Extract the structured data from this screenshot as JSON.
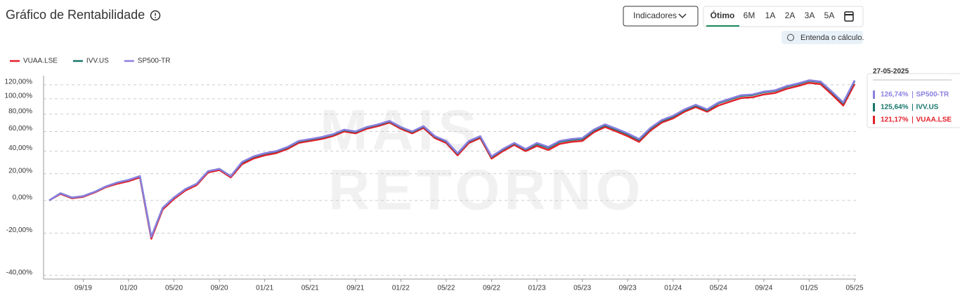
{
  "ui": {
    "title": "Gráfico de Rentabilidade",
    "indicators_button": "Indicadores",
    "period_buttons": [
      "Ótimo",
      "6M",
      "1A",
      "2A",
      "3A",
      "5A"
    ],
    "active_period": "Ótimo",
    "info_pill": "Entenda o cálculo."
  },
  "chart_data": {
    "type": "line",
    "log_scale": true,
    "grid": true,
    "legend": "top-left",
    "watermark": [
      "MAIS",
      "RETORNO"
    ],
    "x": [
      "06/19",
      "07/19",
      "08/19",
      "09/19",
      "10/19",
      "11/19",
      "12/19",
      "01/20",
      "02/20",
      "03/20",
      "04/20",
      "05/20",
      "06/20",
      "07/20",
      "08/20",
      "09/20",
      "10/20",
      "11/20",
      "12/20",
      "01/21",
      "02/21",
      "03/21",
      "04/21",
      "05/21",
      "06/21",
      "07/21",
      "08/21",
      "09/21",
      "10/21",
      "11/21",
      "12/21",
      "01/22",
      "02/22",
      "03/22",
      "04/22",
      "05/22",
      "06/22",
      "07/22",
      "08/22",
      "09/22",
      "10/22",
      "11/22",
      "12/22",
      "01/23",
      "02/23",
      "03/23",
      "04/23",
      "05/23",
      "06/23",
      "07/23",
      "08/23",
      "09/23",
      "10/23",
      "11/23",
      "12/23",
      "01/24",
      "02/24",
      "03/24",
      "04/24",
      "05/24",
      "06/24",
      "07/24",
      "08/24",
      "09/24",
      "10/24",
      "11/24",
      "12/24",
      "01/25",
      "02/25",
      "03/25",
      "04/25",
      "05/25"
    ],
    "xticks": [
      "09/19",
      "01/20",
      "05/20",
      "09/20",
      "01/21",
      "05/21",
      "09/21",
      "01/22",
      "05/22",
      "09/22",
      "01/23",
      "05/23",
      "09/23",
      "01/24",
      "05/24",
      "09/24",
      "01/25",
      "05/25"
    ],
    "ylim": [
      -41.5,
      134
    ],
    "yticks": [
      {
        "value": -40,
        "label": "-40,00%"
      },
      {
        "value": -20,
        "label": "-20,00%"
      },
      {
        "value": 0,
        "label": "0,00%"
      },
      {
        "value": 20,
        "label": "20,00%"
      },
      {
        "value": 40,
        "label": "40,00%"
      },
      {
        "value": 60,
        "label": "60,00%"
      },
      {
        "value": 80,
        "label": "80,00%"
      },
      {
        "value": 100,
        "label": "100,00%"
      },
      {
        "value": 120,
        "label": "120,00%"
      }
    ],
    "series": [
      {
        "name": "VUAA.LSE",
        "color": "#e3202b",
        "values": [
          0,
          4.5,
          1.5,
          2.5,
          5.5,
          9.5,
          12,
          14,
          17,
          -23,
          -6,
          1,
          7,
          11,
          21,
          23,
          17,
          28,
          33,
          36,
          38,
          42,
          48,
          50,
          52,
          55,
          60,
          58,
          63,
          66,
          70,
          63,
          58,
          64,
          53,
          48,
          36,
          48,
          53,
          33,
          40,
          46,
          40,
          45,
          41,
          47,
          49,
          50,
          59,
          65,
          60,
          55,
          49,
          61,
          70,
          75,
          83,
          89,
          83,
          91,
          96,
          101,
          102,
          106,
          108,
          114,
          118,
          123,
          121,
          106,
          91,
          121.17
        ]
      },
      {
        "name": "IVV.US",
        "color": "#17766b",
        "values": [
          0,
          5,
          2,
          3,
          6,
          10,
          13,
          15,
          18,
          -22,
          -5,
          2,
          8,
          12,
          22,
          24,
          18,
          29.5,
          34.5,
          37.5,
          39.5,
          43.5,
          49.5,
          51.5,
          53.5,
          56.5,
          61.5,
          59.5,
          64.5,
          67.5,
          71.5,
          64.5,
          59.5,
          65.5,
          54.5,
          49.5,
          37.5,
          49.5,
          54.5,
          34.5,
          41.5,
          47.5,
          41.5,
          47,
          43,
          49,
          51,
          52,
          61,
          67,
          62,
          57,
          51,
          63,
          72,
          77,
          85,
          91,
          85,
          94,
          99,
          104,
          105,
          109,
          111,
          117,
          121,
          126,
          124,
          109,
          94,
          125.64
        ]
      },
      {
        "name": "SP500-TR",
        "color": "#8a7fe0",
        "values": [
          0,
          5,
          2,
          3,
          6,
          10,
          13,
          15,
          18,
          -22,
          -5,
          2,
          8,
          12,
          22,
          24,
          18,
          30,
          35,
          38,
          40,
          44,
          50,
          52,
          54,
          57,
          62,
          60,
          65,
          68,
          72,
          65,
          60,
          66,
          55,
          50,
          38,
          50,
          55,
          35,
          42,
          48,
          42,
          48,
          44,
          50,
          52,
          53,
          62,
          68,
          63,
          58,
          52,
          64,
          73,
          78,
          86,
          92,
          86,
          95,
          100,
          105,
          106,
          110,
          112,
          118,
          122,
          127,
          125,
          110,
          95,
          126.74
        ]
      }
    ],
    "tooltip": {
      "date": "27-05-2025",
      "value_labels": [
        "121,17%",
        "125,64%",
        "126,74%"
      ]
    }
  }
}
